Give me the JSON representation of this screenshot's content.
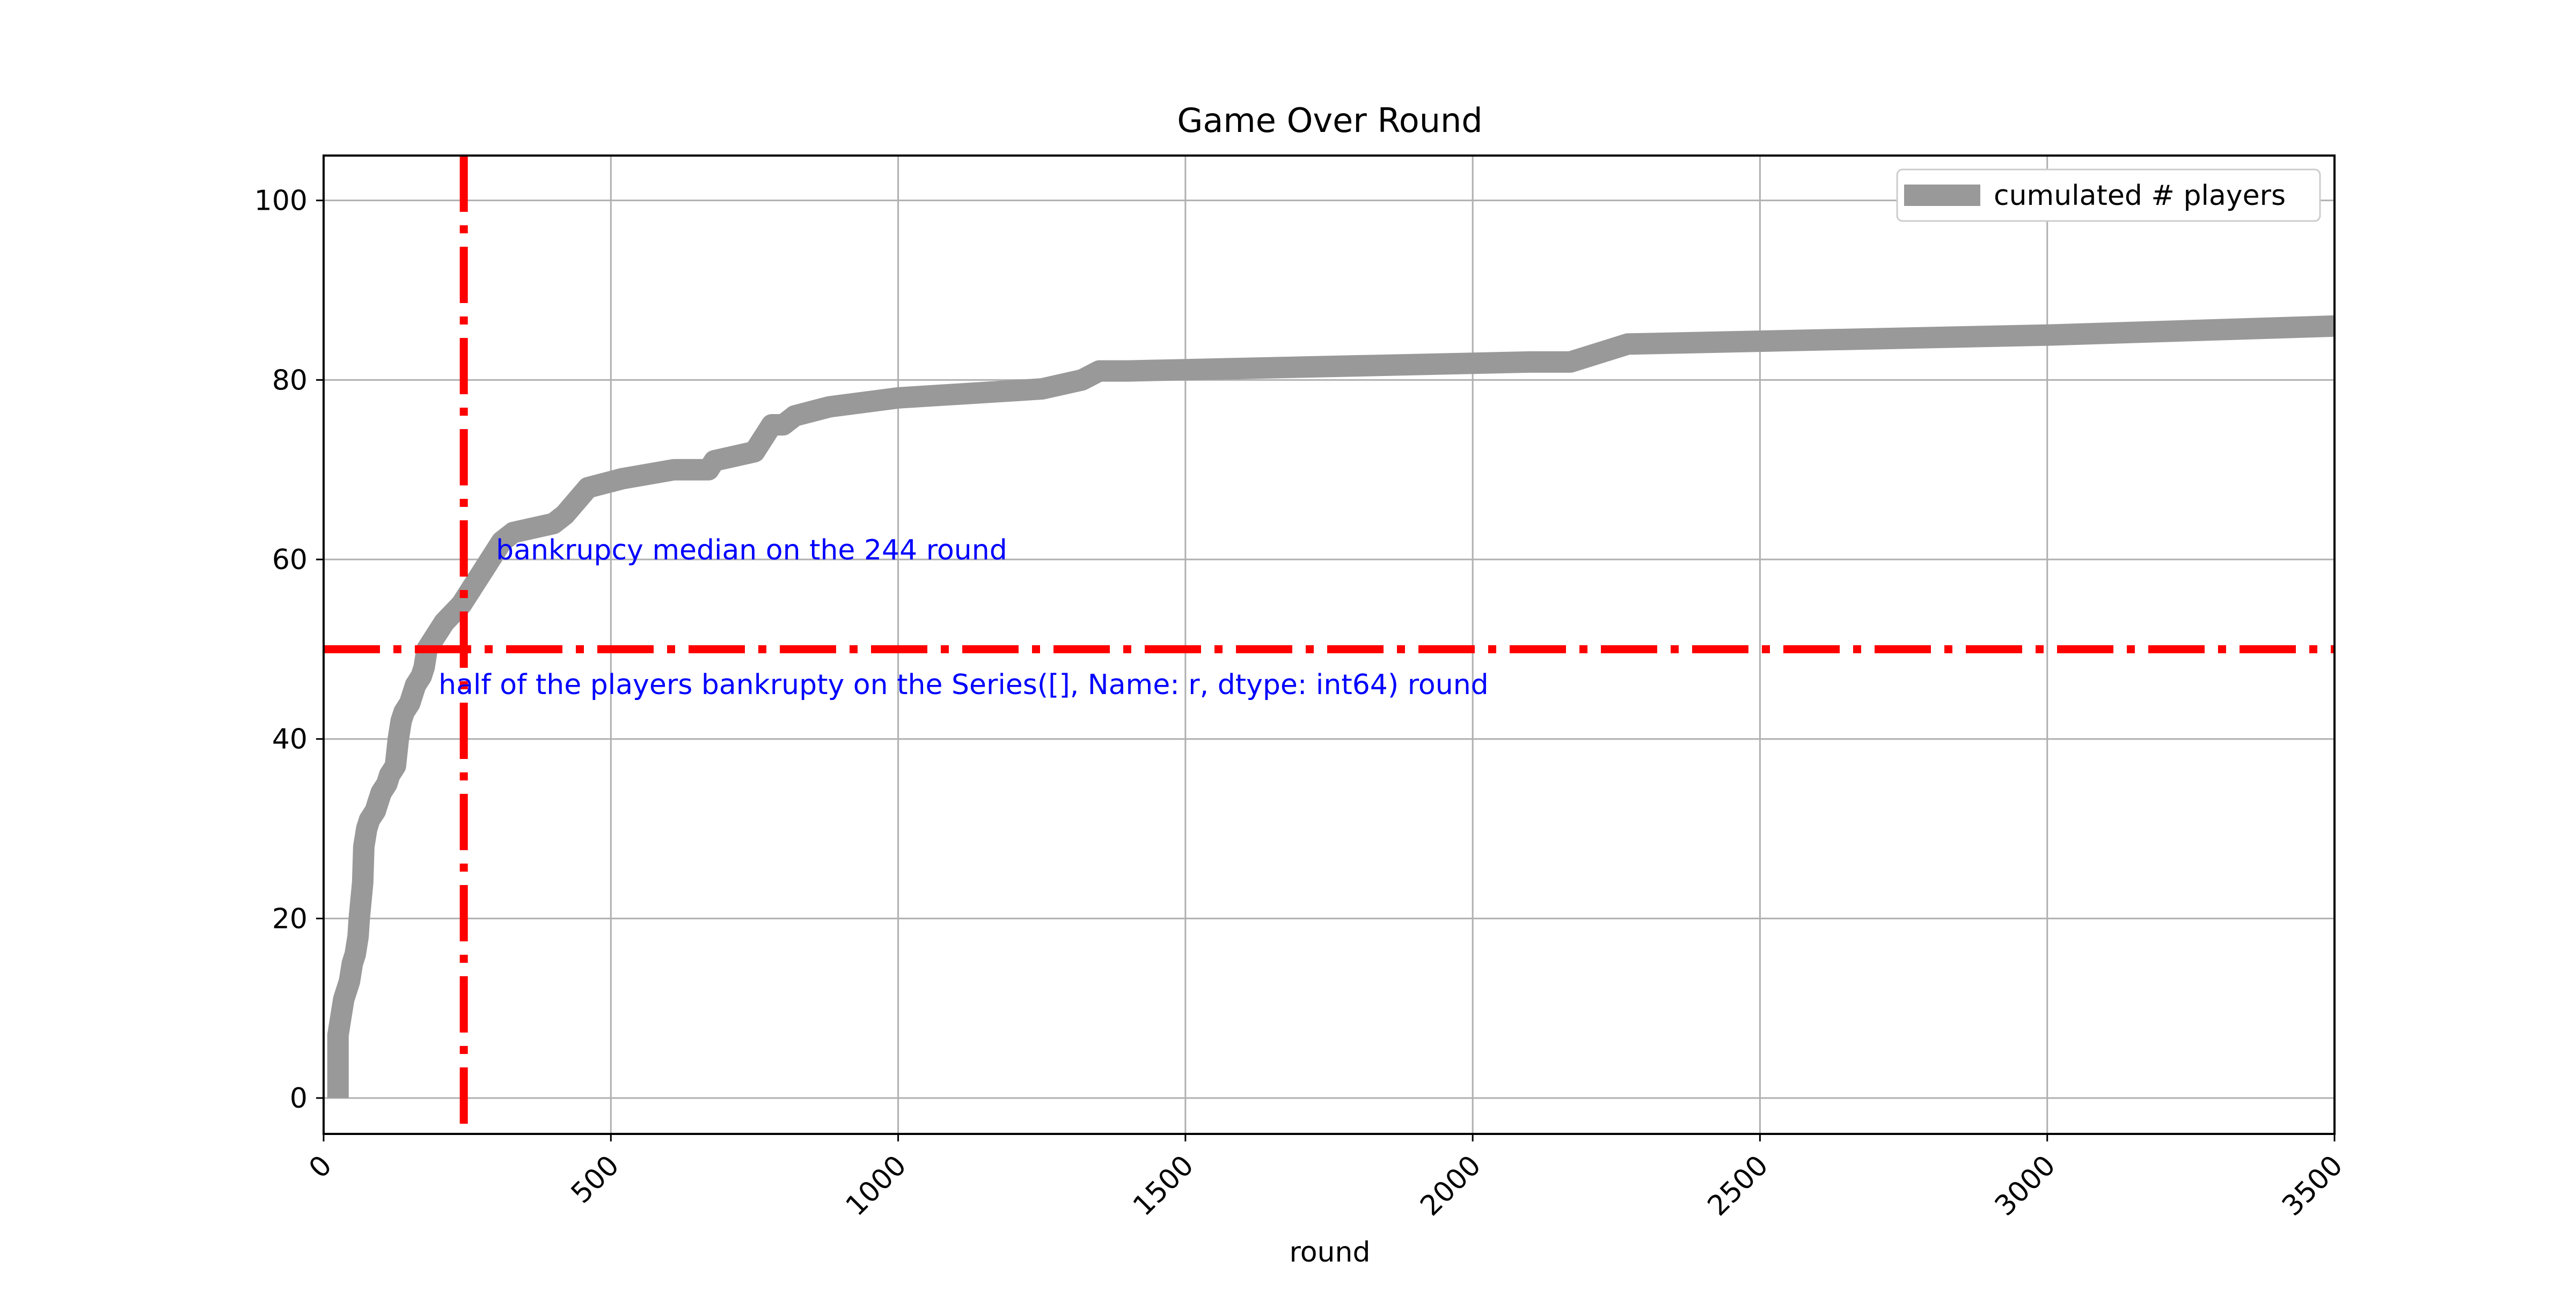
{
  "chart_data": {
    "type": "line",
    "title": "Game Over Round",
    "xlabel": "round",
    "ylabel": "",
    "xlim": [
      0,
      3500
    ],
    "ylim": [
      -4,
      105
    ],
    "xticks": [
      0,
      500,
      1000,
      1500,
      2000,
      2500,
      3000,
      3500
    ],
    "yticks": [
      0,
      20,
      40,
      60,
      80,
      100
    ],
    "xtick_labels": [
      "0",
      "500",
      "1000",
      "1500",
      "2000",
      "2500",
      "3000",
      "3500"
    ],
    "ytick_labels": [
      "0",
      "20",
      "40",
      "60",
      "80",
      "100"
    ],
    "grid": true,
    "legend": {
      "position": "top-right",
      "entries": [
        "cumulated # players"
      ]
    },
    "series": [
      {
        "name": "cumulated # players",
        "color": "#999999",
        "x": [
          25,
          25,
          30,
          35,
          45,
          50,
          55,
          60,
          62,
          65,
          68,
          70,
          75,
          80,
          90,
          95,
          100,
          110,
          115,
          125,
          130,
          135,
          140,
          150,
          160,
          170,
          175,
          180,
          190,
          200,
          210,
          225,
          240,
          250,
          260,
          270,
          280,
          290,
          300,
          310,
          330,
          400,
          420,
          460,
          520,
          610,
          670,
          680,
          750,
          770,
          780,
          800,
          820,
          880,
          1000,
          1250,
          1320,
          1350,
          1400,
          2100,
          2170,
          2270,
          3000,
          3500
        ],
        "y": [
          0,
          7,
          9,
          11,
          13,
          15,
          16,
          18,
          20,
          22,
          24,
          28,
          30,
          31,
          32,
          33,
          34,
          35,
          36,
          37,
          40,
          42,
          43,
          44,
          46,
          47,
          48,
          50,
          51,
          52,
          53,
          54,
          55,
          56,
          57,
          58,
          59,
          60,
          61,
          62,
          63,
          64,
          65,
          68,
          69,
          70,
          70,
          71,
          72,
          74,
          75,
          75,
          76,
          77,
          78,
          79,
          80,
          81,
          81,
          82,
          82,
          84,
          85,
          86
        ]
      }
    ],
    "reference_lines": [
      {
        "orientation": "vertical",
        "value": 244,
        "color": "#ff0000"
      },
      {
        "orientation": "horizontal",
        "value": 50,
        "color": "#ff0000"
      }
    ],
    "annotations": [
      {
        "text": "bankrupcy median on the 244 round",
        "x": 300,
        "y": 60,
        "color": "#0000ff"
      },
      {
        "text": "half of the players bankrupty on the Series([], Name: r, dtype: int64) round",
        "x": 200,
        "y": 45,
        "color": "#0000ff"
      }
    ]
  }
}
